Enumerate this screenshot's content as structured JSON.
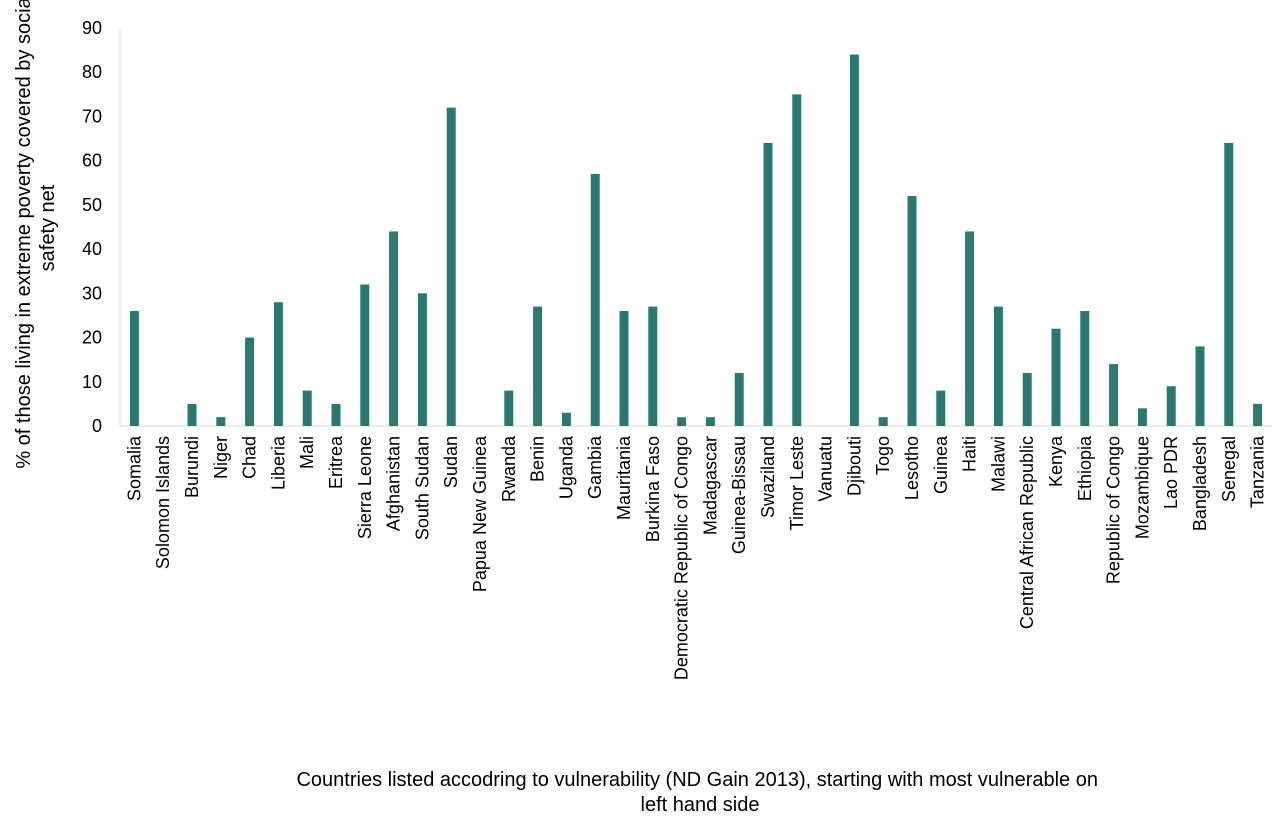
{
  "chart_data": {
    "type": "bar",
    "title": "",
    "ylabel": "% of those living in extreme poverty covered by social safety net",
    "ylabel_lines": [
      "% of those living in extreme poverty covered by social",
      "safety net"
    ],
    "xlabel": "Countries listed accodring to vulnerability (ND Gain 2013), starting with most vulnerable on left hand side",
    "xlabel_lines": [
      "Countries listed accodring to vulnerability (ND Gain 2013), starting with most vulnerable on",
      "left hand side"
    ],
    "ylim": [
      0,
      90
    ],
    "yticks": [
      0,
      10,
      20,
      30,
      40,
      50,
      60,
      70,
      80,
      90
    ],
    "grid": false,
    "legend": "none",
    "bar_color": "#2e7872",
    "categories": [
      "Somalia",
      "Solomon Islands",
      "Burundi",
      "Niger",
      "Chad",
      "Liberia",
      "Mali",
      "Eritrea",
      "Sierra Leone",
      "Afghanistan",
      "South Sudan",
      "Sudan",
      "Papua New Guinea",
      "Rwanda",
      "Benin",
      "Uganda",
      "Gambia",
      "Mauritania",
      "Burkina Faso",
      "Democratic Republic of Congo",
      "Madagascar",
      "Guinea-Bissau",
      "Swaziland",
      "Timor Leste",
      "Vanuatu",
      "Djibouti",
      "Togo",
      "Lesotho",
      "Guinea",
      "Haiti",
      "Malawi",
      "Central African Republic",
      "Kenya",
      "Ethiopia",
      "Republic of Congo",
      "Mozambique",
      "Lao PDR",
      "Bangladesh",
      "Senegal",
      "Tanzania"
    ],
    "values": [
      26,
      0,
      5,
      2,
      20,
      28,
      8,
      5,
      32,
      44,
      30,
      72,
      0,
      8,
      27,
      3,
      57,
      26,
      27,
      2,
      2,
      12,
      64,
      75,
      0,
      84,
      2,
      52,
      8,
      44,
      27,
      12,
      22,
      26,
      14,
      4,
      9,
      18,
      64,
      5
    ]
  }
}
